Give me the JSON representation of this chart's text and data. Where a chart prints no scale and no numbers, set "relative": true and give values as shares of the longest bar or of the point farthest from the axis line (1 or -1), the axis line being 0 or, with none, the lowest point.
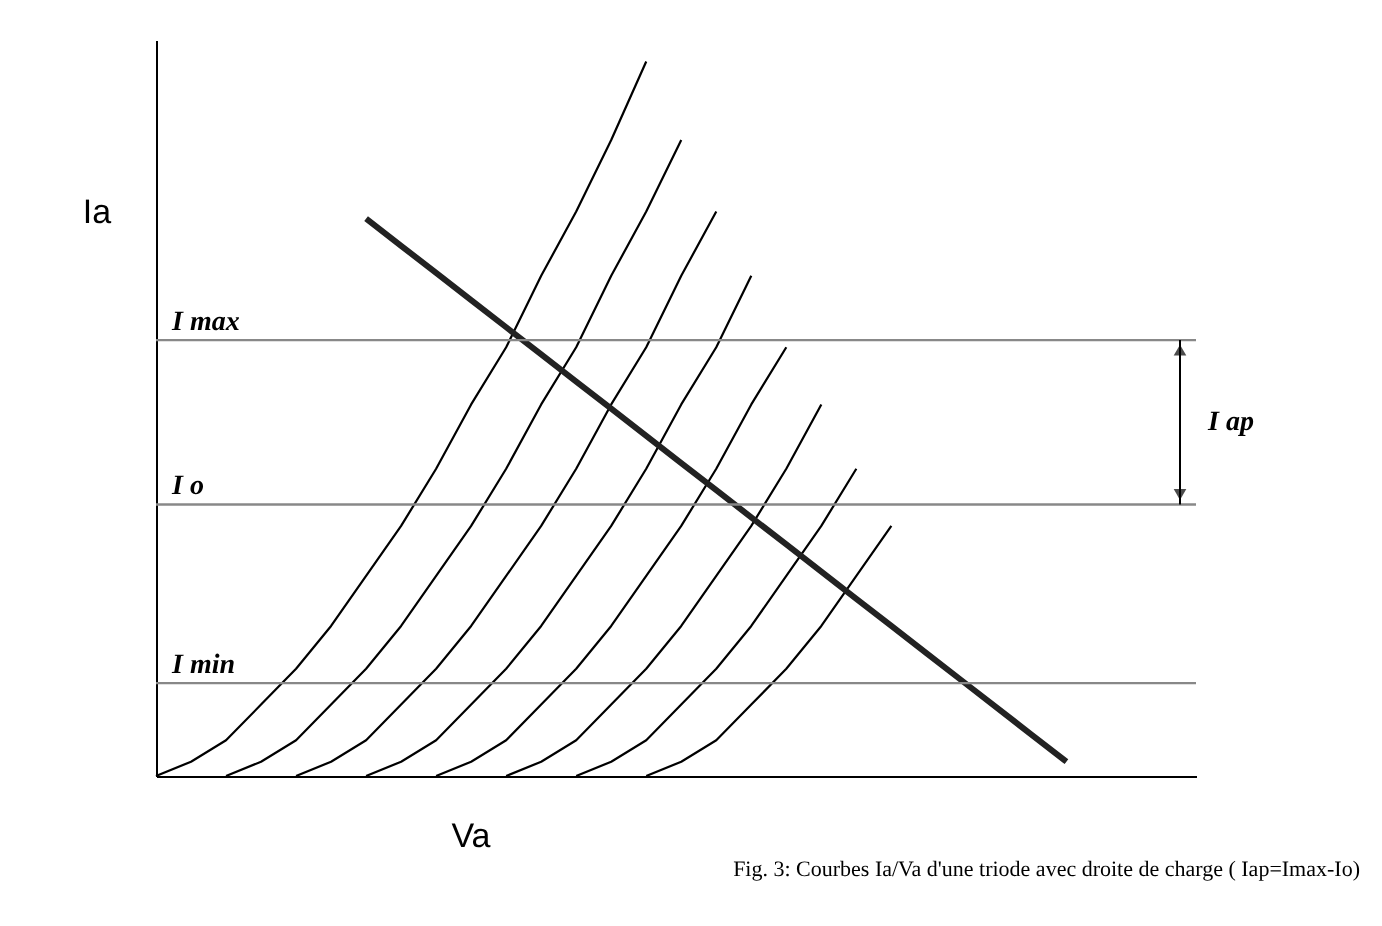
{
  "chart_data": {
    "type": "line",
    "relative": true,
    "xlabel": "Va",
    "ylabel": "Ia",
    "categories": [
      null,
      null,
      null,
      null,
      null,
      null,
      null,
      null,
      null,
      null,
      null,
      null,
      null,
      null,
      null,
      null,
      null,
      null,
      null,
      null,
      null,
      null,
      null,
      null,
      null,
      null,
      null,
      null
    ],
    "series": [
      {
        "color": "#000000",
        "values": [
          0,
          0.02,
          0.05,
          0.1,
          0.15,
          0.21,
          0.28,
          0.35,
          0.43,
          0.52,
          0.6,
          0.7,
          0.79,
          0.89,
          1.0,
          null,
          null,
          null,
          null,
          null,
          null,
          null,
          null,
          null,
          null,
          null,
          null,
          null
        ]
      },
      {
        "color": "#000000",
        "values": [
          null,
          null,
          0,
          0.02,
          0.05,
          0.1,
          0.15,
          0.21,
          0.28,
          0.35,
          0.43,
          0.52,
          0.6,
          0.7,
          0.79,
          0.89,
          null,
          null,
          null,
          null,
          null,
          null,
          null,
          null,
          null,
          null,
          null,
          null
        ]
      },
      {
        "color": "#000000",
        "values": [
          null,
          null,
          null,
          null,
          0,
          0.02,
          0.05,
          0.1,
          0.15,
          0.21,
          0.28,
          0.35,
          0.43,
          0.52,
          0.6,
          0.7,
          0.79,
          null,
          null,
          null,
          null,
          null,
          null,
          null,
          null,
          null,
          null,
          null
        ]
      },
      {
        "color": "#000000",
        "values": [
          null,
          null,
          null,
          null,
          null,
          null,
          0,
          0.02,
          0.05,
          0.1,
          0.15,
          0.21,
          0.28,
          0.35,
          0.43,
          0.52,
          0.6,
          0.7,
          null,
          null,
          null,
          null,
          null,
          null,
          null,
          null,
          null,
          null
        ]
      },
      {
        "color": "#000000",
        "values": [
          null,
          null,
          null,
          null,
          null,
          null,
          null,
          null,
          0,
          0.02,
          0.05,
          0.1,
          0.15,
          0.21,
          0.28,
          0.35,
          0.43,
          0.52,
          0.6,
          null,
          null,
          null,
          null,
          null,
          null,
          null,
          null,
          null
        ]
      },
      {
        "color": "#000000",
        "values": [
          null,
          null,
          null,
          null,
          null,
          null,
          null,
          null,
          null,
          null,
          0,
          0.02,
          0.05,
          0.1,
          0.15,
          0.21,
          0.28,
          0.35,
          0.43,
          0.52,
          null,
          null,
          null,
          null,
          null,
          null,
          null,
          null
        ]
      },
      {
        "color": "#000000",
        "values": [
          null,
          null,
          null,
          null,
          null,
          null,
          null,
          null,
          null,
          null,
          null,
          null,
          0,
          0.02,
          0.05,
          0.1,
          0.15,
          0.21,
          0.28,
          0.35,
          0.43,
          null,
          null,
          null,
          null,
          null,
          null,
          null
        ]
      },
      {
        "color": "#000000",
        "values": [
          null,
          null,
          null,
          null,
          null,
          null,
          null,
          null,
          null,
          null,
          null,
          null,
          null,
          null,
          0,
          0.02,
          0.05,
          0.1,
          0.15,
          0.21,
          0.28,
          0.35,
          null,
          null,
          null,
          null,
          null,
          null
        ]
      },
      {
        "color": "#222222",
        "values": [
          null,
          null,
          null,
          null,
          null,
          null,
          0.78,
          0.742,
          0.704,
          0.666,
          0.628,
          0.59,
          0.552,
          0.514,
          0.476,
          0.438,
          0.4,
          0.362,
          0.324,
          0.286,
          0.248,
          0.21,
          0.172,
          0.134,
          0.096,
          0.058,
          0.02,
          null
        ]
      }
    ],
    "ref_lines": [
      {
        "axis": "y",
        "value": 0.61,
        "label": "I max",
        "color": "#888888"
      },
      {
        "axis": "y",
        "value": 0.38,
        "label": "I o",
        "color": "#888888"
      },
      {
        "axis": "y",
        "value": 0.13,
        "label": "I min",
        "color": "#888888"
      }
    ],
    "annotations": [
      "I ap",
      "Fig. 3: Courbes Ia/Va d'une triode avec droite de charge ( Iap=Imax-Io)"
    ]
  }
}
